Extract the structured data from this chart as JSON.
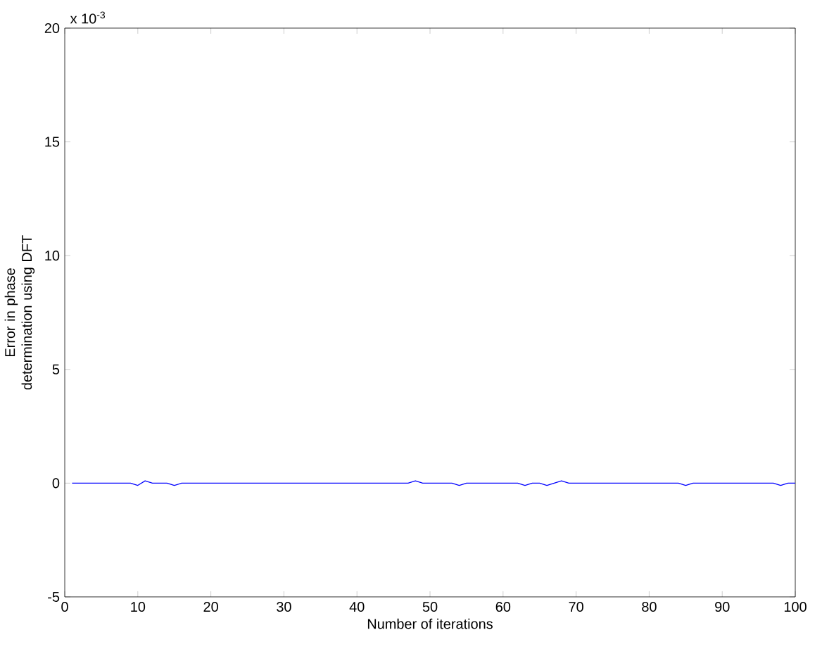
{
  "chart_data": {
    "type": "line",
    "xlabel": "Number of iterations",
    "ylabel": "Error in phase determination using DFT",
    "annotations": [
      "x 10$^{-3}$"
    ],
    "x": [
      1,
      2,
      3,
      4,
      5,
      6,
      7,
      8,
      9,
      10,
      11,
      12,
      13,
      14,
      15,
      16,
      17,
      18,
      19,
      20,
      21,
      22,
      23,
      24,
      25,
      26,
      27,
      28,
      29,
      30,
      31,
      32,
      33,
      34,
      35,
      36,
      37,
      38,
      39,
      40,
      41,
      42,
      43,
      44,
      45,
      46,
      47,
      48,
      49,
      50,
      51,
      52,
      53,
      54,
      55,
      56,
      57,
      58,
      59,
      60,
      61,
      62,
      63,
      64,
      65,
      66,
      67,
      68,
      69,
      70,
      71,
      72,
      73,
      74,
      75,
      76,
      77,
      78,
      79,
      80,
      81,
      82,
      83,
      84,
      85,
      86,
      87,
      88,
      89,
      90,
      91,
      92,
      93,
      94,
      95,
      96,
      97,
      98,
      99,
      100
    ],
    "series": [
      {
        "color": "#0000ff",
        "values": [
          0,
          0,
          0,
          0,
          0,
          0,
          0,
          0,
          0,
          -0.1,
          0.1,
          0,
          0,
          0,
          -0.1,
          0,
          0,
          0,
          0,
          0,
          0,
          0,
          0,
          0,
          0,
          0,
          0,
          0,
          0,
          0,
          0,
          0,
          0,
          0,
          0,
          0,
          0,
          0,
          0,
          0,
          0,
          0,
          0,
          0,
          0,
          0,
          0,
          0.1,
          0,
          0,
          0,
          0,
          0,
          -0.1,
          0,
          0,
          0,
          0,
          0,
          0,
          0,
          0,
          -0.1,
          0,
          0,
          -0.1,
          0,
          0.1,
          0,
          0,
          0,
          0,
          0,
          0,
          0,
          0,
          0,
          0,
          0,
          0,
          0,
          0,
          0,
          0,
          -0.1,
          0,
          0,
          0,
          0,
          0,
          0,
          0,
          0,
          0,
          0,
          0,
          0,
          -0.1,
          0,
          0
        ]
      }
    ],
    "xlim": [
      0,
      100
    ],
    "ylim": [
      -5,
      20
    ],
    "xticks": [
      0,
      10,
      20,
      30,
      40,
      50,
      60,
      70,
      80,
      90,
      100
    ],
    "yticks": [
      -5,
      0,
      5,
      10,
      15,
      20
    ],
    "grid": false,
    "marker": "none",
    "line_style": "solid"
  }
}
